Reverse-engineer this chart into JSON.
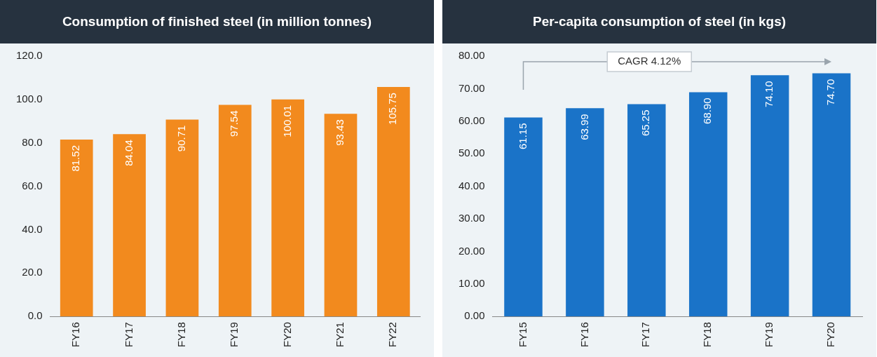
{
  "chart_data": [
    {
      "type": "bar",
      "title": "Consumption of finished steel (in million tonnes)",
      "categories": [
        "FY16",
        "FY17",
        "FY18",
        "FY19",
        "FY20",
        "FY21",
        "FY22"
      ],
      "values": [
        81.52,
        84.04,
        90.71,
        97.54,
        100.01,
        93.43,
        105.75
      ],
      "value_labels": [
        "81.52",
        "84.04",
        "90.71",
        "97.54",
        "100.01",
        "93.43",
        "105.75"
      ],
      "color": "#f28a1e",
      "ylim": [
        0,
        120
      ],
      "yticks": [
        {
          "value": 0,
          "label": "0.0"
        },
        {
          "value": 20,
          "label": "20.0"
        },
        {
          "value": 40,
          "label": "40.0"
        },
        {
          "value": 60,
          "label": "60.0"
        },
        {
          "value": 80,
          "label": "80.0"
        },
        {
          "value": 100,
          "label": "100.0"
        },
        {
          "value": 120,
          "label": "120.0"
        }
      ],
      "grid": false,
      "legend": false
    },
    {
      "type": "bar",
      "title": "Per-capita consumption of steel (in kgs)",
      "categories": [
        "FY15",
        "FY16",
        "FY17",
        "FY18",
        "FY19",
        "FY20"
      ],
      "values": [
        61.15,
        63.99,
        65.25,
        68.9,
        74.1,
        74.7
      ],
      "value_labels": [
        "61.15",
        "63.99",
        "65.25",
        "68.90",
        "74.10",
        "74.70"
      ],
      "color": "#1a73c8",
      "ylim": [
        0,
        80
      ],
      "yticks": [
        {
          "value": 0,
          "label": "0.00"
        },
        {
          "value": 10,
          "label": "10.00"
        },
        {
          "value": 20,
          "label": "20.00"
        },
        {
          "value": 30,
          "label": "30.00"
        },
        {
          "value": 40,
          "label": "40.00"
        },
        {
          "value": 50,
          "label": "50.00"
        },
        {
          "value": 60,
          "label": "60.00"
        },
        {
          "value": 70,
          "label": "70.00"
        },
        {
          "value": 80,
          "label": "80.00"
        }
      ],
      "grid": false,
      "legend": false,
      "annotations": [
        "CAGR 4.12%"
      ]
    }
  ]
}
